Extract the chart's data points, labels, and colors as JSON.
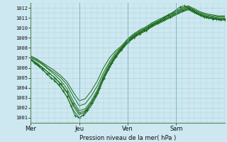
{
  "xlabel": "Pression niveau de la mer( hPa )",
  "bg_color": "#cde8f0",
  "grid_color": "#a8ccd8",
  "line_color": "#1a6b1a",
  "marker_color": "#1a6b1a",
  "ylim": [
    1000.5,
    1012.5
  ],
  "day_labels": [
    "Mer",
    "Jeu",
    "Ven",
    "Sam"
  ],
  "day_positions": [
    0,
    48,
    96,
    144
  ],
  "total_hours": 192,
  "lines": [
    {
      "x": [
        0,
        4,
        8,
        12,
        16,
        20,
        24,
        28,
        32,
        36,
        40,
        44,
        48,
        52,
        56,
        60,
        64,
        68,
        72,
        76,
        80,
        84,
        88,
        92,
        96,
        100,
        104,
        108,
        112,
        116,
        120,
        124,
        128,
        132,
        136,
        140,
        144,
        148,
        152,
        156,
        160,
        164,
        168,
        172,
        176,
        180,
        184,
        188,
        192
      ],
      "y": [
        1006.8,
        1006.5,
        1006.2,
        1005.8,
        1005.4,
        1005.0,
        1004.7,
        1004.3,
        1003.7,
        1003.1,
        1002.2,
        1001.2,
        1001.0,
        1001.3,
        1001.8,
        1002.5,
        1003.2,
        1004.0,
        1005.0,
        1005.8,
        1006.5,
        1007.2,
        1007.8,
        1008.2,
        1008.5,
        1009.0,
        1009.3,
        1009.5,
        1009.8,
        1010.0,
        1010.3,
        1010.5,
        1010.7,
        1011.0,
        1011.3,
        1011.5,
        1011.8,
        1012.1,
        1012.2,
        1012.0,
        1011.8,
        1011.5,
        1011.3,
        1011.1,
        1011.0,
        1010.9,
        1010.9,
        1010.8,
        1010.8
      ],
      "marker": true
    },
    {
      "x": [
        0,
        6,
        12,
        18,
        24,
        30,
        36,
        42,
        48,
        54,
        60,
        66,
        72,
        78,
        84,
        90,
        96,
        102,
        108,
        114,
        120,
        126,
        132,
        138,
        144,
        150,
        156,
        162,
        168,
        174,
        180,
        186,
        192
      ],
      "y": [
        1006.8,
        1006.3,
        1005.8,
        1005.2,
        1004.7,
        1004.0,
        1003.1,
        1001.8,
        1001.0,
        1001.4,
        1002.2,
        1003.3,
        1004.8,
        1006.0,
        1007.0,
        1007.8,
        1008.5,
        1009.0,
        1009.4,
        1009.7,
        1010.1,
        1010.4,
        1010.7,
        1011.0,
        1011.3,
        1011.6,
        1011.8,
        1011.5,
        1011.2,
        1011.0,
        1010.9,
        1010.8,
        1010.8
      ],
      "marker": false
    },
    {
      "x": [
        0,
        6,
        12,
        18,
        24,
        30,
        36,
        42,
        48,
        54,
        60,
        66,
        72,
        78,
        84,
        90,
        96,
        102,
        108,
        114,
        120,
        126,
        132,
        138,
        144,
        150,
        156,
        162,
        168,
        174,
        180,
        186,
        192
      ],
      "y": [
        1006.9,
        1006.5,
        1006.0,
        1005.5,
        1005.0,
        1004.3,
        1003.5,
        1002.2,
        1001.3,
        1001.6,
        1002.4,
        1003.5,
        1005.0,
        1006.2,
        1007.2,
        1007.9,
        1008.6,
        1009.1,
        1009.5,
        1009.8,
        1010.2,
        1010.5,
        1010.8,
        1011.1,
        1011.4,
        1011.7,
        1011.9,
        1011.6,
        1011.3,
        1011.1,
        1011.0,
        1010.9,
        1010.9
      ],
      "marker": false
    },
    {
      "x": [
        0,
        6,
        12,
        18,
        24,
        30,
        36,
        42,
        48,
        54,
        60,
        66,
        72,
        78,
        84,
        90,
        96,
        102,
        108,
        114,
        120,
        126,
        132,
        138,
        144,
        150,
        156,
        162,
        168,
        174,
        180,
        186,
        192
      ],
      "y": [
        1007.0,
        1006.7,
        1006.3,
        1005.8,
        1005.3,
        1004.7,
        1003.9,
        1002.7,
        1001.7,
        1001.9,
        1002.7,
        1003.8,
        1005.2,
        1006.4,
        1007.3,
        1008.0,
        1008.7,
        1009.2,
        1009.6,
        1009.9,
        1010.3,
        1010.6,
        1010.9,
        1011.2,
        1011.5,
        1011.8,
        1012.0,
        1011.7,
        1011.4,
        1011.2,
        1011.1,
        1011.0,
        1011.0
      ],
      "marker": false
    },
    {
      "x": [
        0,
        6,
        12,
        18,
        24,
        30,
        36,
        42,
        48,
        54,
        60,
        66,
        72,
        78,
        84,
        90,
        96,
        102,
        108,
        114,
        120,
        126,
        132,
        138,
        144,
        150,
        156,
        162,
        168,
        174,
        180,
        186,
        192
      ],
      "y": [
        1007.1,
        1006.8,
        1006.4,
        1005.9,
        1005.5,
        1005.0,
        1004.3,
        1003.2,
        1002.2,
        1002.4,
        1003.2,
        1004.2,
        1005.5,
        1006.6,
        1007.5,
        1008.1,
        1008.8,
        1009.3,
        1009.7,
        1010.0,
        1010.4,
        1010.7,
        1011.0,
        1011.3,
        1011.6,
        1011.9,
        1012.1,
        1011.8,
        1011.5,
        1011.3,
        1011.2,
        1011.1,
        1011.1
      ],
      "marker": false
    },
    {
      "x": [
        0,
        6,
        12,
        18,
        24,
        30,
        36,
        42,
        48,
        54,
        60,
        66,
        72,
        78,
        84,
        90,
        96,
        102,
        108,
        114,
        120,
        126,
        132,
        138,
        144,
        150,
        156,
        162,
        168,
        174,
        180,
        186,
        192
      ],
      "y": [
        1007.2,
        1006.9,
        1006.5,
        1006.1,
        1005.7,
        1005.2,
        1004.6,
        1003.6,
        1002.7,
        1002.9,
        1003.7,
        1004.7,
        1006.0,
        1007.0,
        1007.7,
        1008.2,
        1008.9,
        1009.4,
        1009.8,
        1010.1,
        1010.5,
        1010.8,
        1011.1,
        1011.4,
        1011.7,
        1012.0,
        1012.2,
        1011.9,
        1011.6,
        1011.4,
        1011.3,
        1011.2,
        1011.2
      ],
      "marker": false
    },
    {
      "x": [
        0,
        6,
        12,
        18,
        24,
        30,
        36,
        42,
        48,
        54,
        60,
        66,
        72,
        78,
        84,
        90,
        96,
        102,
        108,
        114,
        120,
        126,
        132,
        138,
        144,
        150,
        156,
        162,
        168,
        174,
        180,
        186,
        192
      ],
      "y": [
        1006.8,
        1006.4,
        1006.0,
        1005.5,
        1005.0,
        1004.4,
        1003.6,
        1002.4,
        1001.5,
        1001.7,
        1002.5,
        1003.5,
        1004.9,
        1006.1,
        1007.1,
        1007.8,
        1008.5,
        1009.0,
        1009.4,
        1009.7,
        1010.2,
        1010.5,
        1010.8,
        1011.1,
        1011.4,
        1011.7,
        1011.9,
        1011.6,
        1011.3,
        1011.1,
        1011.0,
        1010.9,
        1010.9
      ],
      "marker": true
    }
  ]
}
